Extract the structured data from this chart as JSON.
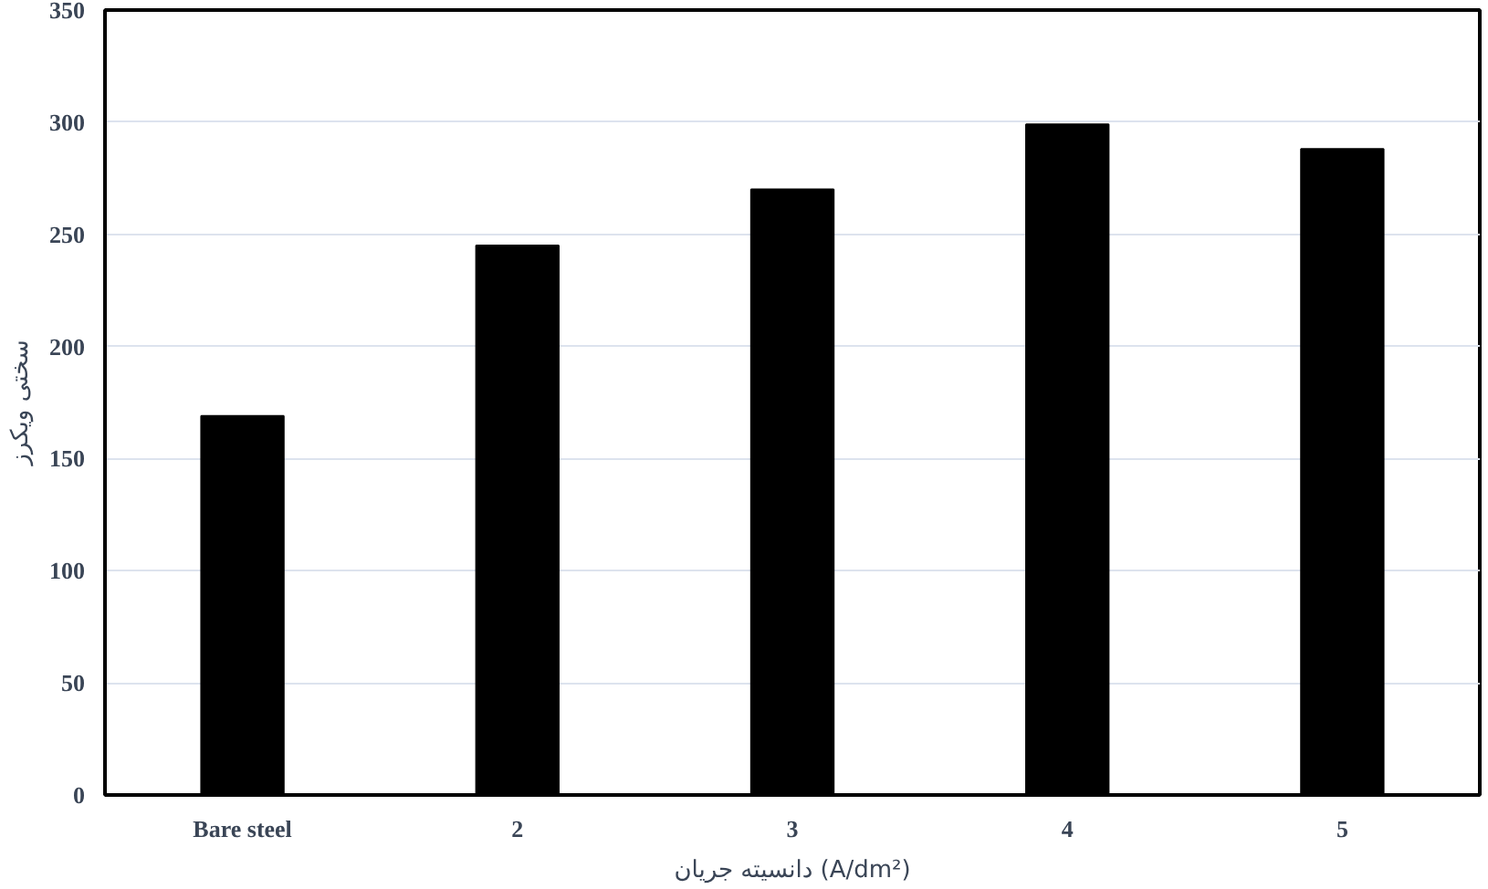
{
  "chart_data": {
    "type": "bar",
    "xlabel": "دانسیته جریان (A/dm²)",
    "ylabel": "سختی ویکرز",
    "categories": [
      "Bare steel",
      "2",
      "3",
      "4",
      "5"
    ],
    "values": [
      169,
      245,
      270,
      299,
      288
    ],
    "color": "#000000",
    "ylim": [
      0,
      350
    ],
    "yticks": [
      0,
      50,
      100,
      150,
      200,
      250,
      300,
      350
    ],
    "grid": "y"
  }
}
